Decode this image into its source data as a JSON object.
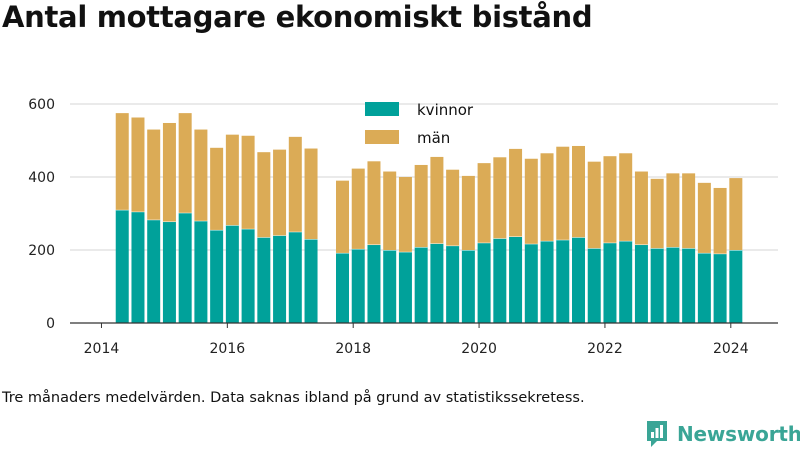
{
  "title": "Antal mottagare ekonomiskt bistånd",
  "footnote": "Tre månaders medelvärden. Data saknas ibland på grund av statistikssekretess.",
  "brand": {
    "name": "Newsworthy",
    "icon": "newsworthy-logo-icon",
    "color": "#3aa596"
  },
  "chart_data": {
    "type": "bar",
    "stacked": true,
    "title": "Antal mottagare ekonomiskt bistånd",
    "xlabel": "",
    "ylabel": "",
    "xlim": [
      2013.5,
      2024.75
    ],
    "ylim": [
      0,
      600
    ],
    "yticks": [
      0,
      200,
      400,
      600
    ],
    "xticks": [
      2014,
      2016,
      2018,
      2020,
      2022,
      2024
    ],
    "grid": true,
    "legend": "top-center",
    "x": [
      2014.33,
      2014.58,
      2014.83,
      2015.08,
      2015.33,
      2015.58,
      2015.83,
      2016.08,
      2016.33,
      2016.58,
      2016.83,
      2017.08,
      2017.33,
      2017.83,
      2018.08,
      2018.33,
      2018.58,
      2018.83,
      2019.08,
      2019.33,
      2019.58,
      2019.83,
      2020.08,
      2020.33,
      2020.58,
      2020.83,
      2021.08,
      2021.33,
      2021.58,
      2021.83,
      2022.08,
      2022.33,
      2022.58,
      2022.83,
      2023.08,
      2023.33,
      2023.58,
      2023.83,
      2024.08
    ],
    "series": [
      {
        "name": "kvinnor",
        "color": "#00a19a",
        "values": [
          310,
          305,
          283,
          278,
          302,
          280,
          255,
          268,
          258,
          235,
          240,
          250,
          230,
          192,
          203,
          215,
          200,
          195,
          208,
          218,
          212,
          200,
          220,
          232,
          237,
          217,
          225,
          228,
          235,
          205,
          220,
          225,
          215,
          205,
          208,
          205,
          192,
          190,
          200
        ]
      },
      {
        "name": "män",
        "color": "#dbab56",
        "values": [
          265,
          258,
          247,
          270,
          273,
          250,
          225,
          248,
          255,
          233,
          235,
          260,
          248,
          198,
          220,
          228,
          215,
          205,
          225,
          237,
          208,
          203,
          218,
          222,
          240,
          233,
          240,
          255,
          250,
          237,
          237,
          240,
          200,
          190,
          202,
          205,
          192,
          180,
          197
        ]
      }
    ]
  }
}
